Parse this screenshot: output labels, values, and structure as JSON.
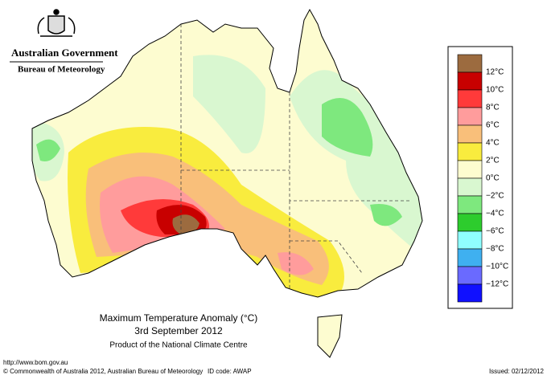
{
  "header": {
    "agency": "Australian Government",
    "bureau": "Bureau of Meteorology"
  },
  "legend": {
    "colors": [
      "#9c6b3f",
      "#c80000",
      "#ff3a3a",
      "#ff9c9c",
      "#f9bf7a",
      "#f9ec3e",
      "#fdfcd0",
      "#d9f7d0",
      "#7ee87e",
      "#2dcc2d",
      "#90ffff",
      "#3fb0f0",
      "#6a6aff",
      "#1010ff"
    ],
    "labels": [
      "12°C",
      "10°C",
      "8°C",
      "6°C",
      "4°C",
      "2°C",
      "0°C",
      "−2°C",
      "−4°C",
      "−6°C",
      "−8°C",
      "−10°C",
      "−12°C"
    ]
  },
  "map": {
    "title": "Maximum Temperature Anomaly (°C)",
    "date": "3rd September 2012",
    "credit": "Product of the National Climate Centre"
  },
  "footer": {
    "url": "http://www.bom.gov.au",
    "copyright": "© Commonwealth of Australia 2012, Australian Bureau of Meteorology",
    "id": "ID code: AWAP",
    "issued": "Issued: 02/12/2012"
  }
}
